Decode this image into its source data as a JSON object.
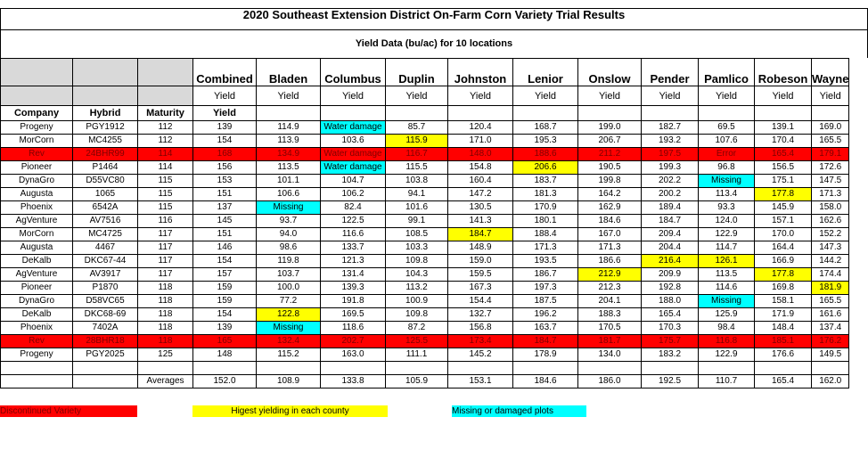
{
  "title": "2020 Southeast Extension District On-Farm Corn Variety Trial Results",
  "subtitle": "Yield Data (bu/ac) for 10 locations",
  "headers": {
    "locations": [
      "Combined",
      "Bladen",
      "Columbus",
      "Duplin",
      "Johnston",
      "Lenior",
      "Onslow",
      "Pender",
      "Pamlico",
      "Robeson",
      "Wayne"
    ],
    "yield": "Yield",
    "company": "Company",
    "hybrid": "Hybrid",
    "maturity": "Maturity"
  },
  "rows": [
    {
      "company": "Progeny",
      "hybrid": "PGY1912",
      "maturity": "112",
      "vals": [
        "139",
        "114.9",
        "Water damage",
        "85.7",
        "120.4",
        "168.7",
        "199.0",
        "182.7",
        "69.5",
        "139.1",
        "169.0"
      ],
      "hl": {
        "2": "cyan"
      }
    },
    {
      "company": "MorCorn",
      "hybrid": "MC4255",
      "maturity": "112",
      "vals": [
        "154",
        "113.9",
        "103.6",
        "115.9",
        "171.0",
        "195.3",
        "206.7",
        "193.2",
        "107.6",
        "170.4",
        "165.5"
      ],
      "hl": {
        "3": "yel"
      }
    },
    {
      "company": "Rev",
      "hybrid": "24BHR99",
      "maturity": "114",
      "vals": [
        "168",
        "134.9",
        "Water damage",
        "116.7",
        "148.0",
        "188.6",
        "211.2",
        "197.5",
        "Error",
        "165.4",
        "179.1"
      ],
      "hl": {},
      "rev": true
    },
    {
      "company": "Pioneer",
      "hybrid": "P1464",
      "maturity": "114",
      "vals": [
        "156",
        "113.5",
        "Water damage",
        "115.5",
        "154.8",
        "206.6",
        "190.5",
        "199.3",
        "96.8",
        "156.5",
        "172.6"
      ],
      "hl": {
        "2": "cyan",
        "5": "yel"
      }
    },
    {
      "company": "DynaGro",
      "hybrid": "D55VC80",
      "maturity": "115",
      "vals": [
        "153",
        "101.1",
        "104.7",
        "103.8",
        "160.4",
        "183.7",
        "199.8",
        "202.2",
        "Missing",
        "175.1",
        "147.5"
      ],
      "hl": {
        "8": "cyan"
      }
    },
    {
      "company": "Augusta",
      "hybrid": "1065",
      "maturity": "115",
      "vals": [
        "151",
        "106.6",
        "106.2",
        "94.1",
        "147.2",
        "181.3",
        "164.2",
        "200.2",
        "113.4",
        "177.8",
        "171.3"
      ],
      "hl": {
        "9": "yel"
      }
    },
    {
      "company": "Phoenix",
      "hybrid": "6542A",
      "maturity": "115",
      "vals": [
        "137",
        "Missing",
        "82.4",
        "101.6",
        "130.5",
        "170.9",
        "162.9",
        "189.4",
        "93.3",
        "145.9",
        "158.0"
      ],
      "hl": {
        "1": "cyan"
      }
    },
    {
      "company": "AgVenture",
      "hybrid": "AV7516",
      "maturity": "116",
      "vals": [
        "145",
        "93.7",
        "122.5",
        "99.1",
        "141.3",
        "180.1",
        "184.6",
        "184.7",
        "124.0",
        "157.1",
        "162.6"
      ],
      "hl": {}
    },
    {
      "company": "MorCorn",
      "hybrid": "MC4725",
      "maturity": "117",
      "vals": [
        "151",
        "94.0",
        "116.6",
        "108.5",
        "184.7",
        "188.4",
        "167.0",
        "209.4",
        "122.9",
        "170.0",
        "152.2"
      ],
      "hl": {
        "4": "yel"
      }
    },
    {
      "company": "Augusta",
      "hybrid": "4467",
      "maturity": "117",
      "vals": [
        "146",
        "98.6",
        "133.7",
        "103.3",
        "148.9",
        "171.3",
        "171.3",
        "204.4",
        "114.7",
        "164.4",
        "147.3"
      ],
      "hl": {}
    },
    {
      "company": "DeKalb",
      "hybrid": "DKC67-44",
      "maturity": "117",
      "vals": [
        "154",
        "119.8",
        "121.3",
        "109.8",
        "159.0",
        "193.5",
        "186.6",
        "216.4",
        "126.1",
        "166.9",
        "144.2"
      ],
      "hl": {
        "7": "yel",
        "8": "yel"
      }
    },
    {
      "company": "AgVenture",
      "hybrid": "AV3917",
      "maturity": "117",
      "vals": [
        "157",
        "103.7",
        "131.4",
        "104.3",
        "159.5",
        "186.7",
        "212.9",
        "209.9",
        "113.5",
        "177.8",
        "174.4"
      ],
      "hl": {
        "6": "yel",
        "9": "yel"
      }
    },
    {
      "company": "Pioneer",
      "hybrid": "P1870",
      "maturity": "118",
      "vals": [
        "159",
        "100.0",
        "139.3",
        "113.2",
        "167.3",
        "197.3",
        "212.3",
        "192.8",
        "114.6",
        "169.8",
        "181.9"
      ],
      "hl": {
        "10": "yel"
      }
    },
    {
      "company": "DynaGro",
      "hybrid": "D58VC65",
      "maturity": "118",
      "vals": [
        "159",
        "77.2",
        "191.8",
        "100.9",
        "154.4",
        "187.5",
        "204.1",
        "188.0",
        "Missing",
        "158.1",
        "165.5"
      ],
      "hl": {
        "8": "cyan"
      }
    },
    {
      "company": "DeKalb",
      "hybrid": "DKC68-69",
      "maturity": "118",
      "vals": [
        "154",
        "122.8",
        "169.5",
        "109.8",
        "132.7",
        "196.2",
        "188.3",
        "165.4",
        "125.9",
        "171.9",
        "161.6"
      ],
      "hl": {
        "1": "yel"
      }
    },
    {
      "company": "Phoenix",
      "hybrid": "7402A",
      "maturity": "118",
      "vals": [
        "139",
        "Missing",
        "118.6",
        "87.2",
        "156.8",
        "163.7",
        "170.5",
        "170.3",
        "98.4",
        "148.4",
        "137.4"
      ],
      "hl": {
        "1": "cyan"
      }
    },
    {
      "company": "Rev",
      "hybrid": "28BHR18",
      "maturity": "118",
      "vals": [
        "165",
        "132.4",
        "202.7",
        "125.5",
        "173.4",
        "184.7",
        "181.7",
        "175.7",
        "116.8",
        "185.1",
        "176.2"
      ],
      "hl": {},
      "rev": true
    },
    {
      "company": "Progeny",
      "hybrid": "PGY2025",
      "maturity": "125",
      "vals": [
        "148",
        "115.2",
        "163.0",
        "111.1",
        "145.2",
        "178.9",
        "134.0",
        "183.2",
        "122.9",
        "176.6",
        "149.5"
      ],
      "hl": {}
    }
  ],
  "averages": {
    "label": "Averages",
    "vals": [
      "152.0",
      "108.9",
      "133.8",
      "105.9",
      "153.1",
      "184.6",
      "186.0",
      "192.5",
      "110.7",
      "165.4",
      "162.0"
    ]
  },
  "legend": {
    "discontinued": "Discontinued Variety",
    "highest": "Higest yielding in each county",
    "missing": "Missing or damaged plots"
  },
  "colors": {
    "discontinued": "#ff0000",
    "highest": "#ffff00",
    "missing": "#00ffff",
    "header_gray": "#d9d9d9"
  }
}
